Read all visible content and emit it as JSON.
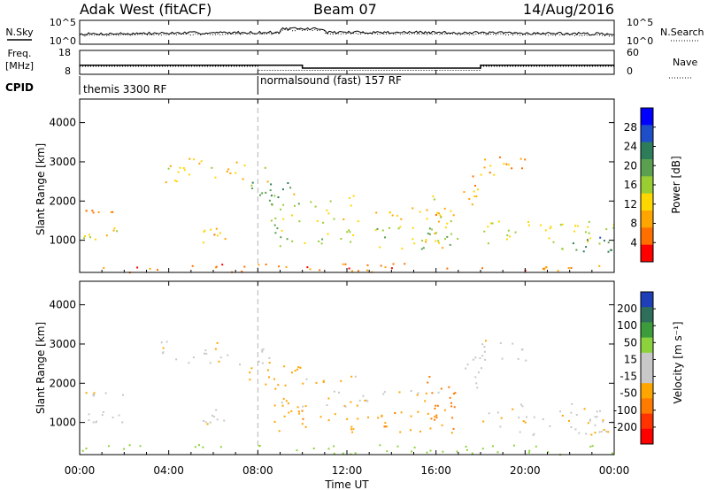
{
  "header": {
    "station": "Adak West (fitACF)",
    "beam": "Beam 07",
    "date": "14/Aug/2016"
  },
  "chart_data": {
    "type": "heatmap",
    "x_ticks": [
      "00:00",
      "04:00",
      "08:00",
      "12:00",
      "16:00",
      "20:00",
      "00:00"
    ],
    "xlabel": "Time UT",
    "xlim_hours": [
      0,
      24
    ],
    "mode_change_hour": 8,
    "noise_panel": {
      "left_label": "N.Sky",
      "right_label": "N.Search",
      "left_ticks": [
        "10^5",
        "10^0"
      ],
      "right_ticks": [
        "10^5",
        "10^0"
      ]
    },
    "freq_panel": {
      "left_label_1": "Freq.",
      "left_label_2": "[MHz]",
      "right_label": "Nave",
      "left_ticks": [
        "18",
        "8"
      ],
      "right_ticks": [
        "60",
        "0"
      ],
      "freq_segments": [
        {
          "start": 0.0,
          "end": 10.0,
          "value": 11.8
        },
        {
          "start": 10.0,
          "end": 18.0,
          "value": 10.6
        },
        {
          "start": 18.0,
          "end": 24.0,
          "value": 11.8
        }
      ],
      "nave_segments": [
        {
          "start": 0.0,
          "end": 8.0,
          "value": 20
        },
        {
          "start": 8.0,
          "end": 18.0,
          "value": 10
        },
        {
          "start": 18.0,
          "end": 24.0,
          "value": 20
        }
      ]
    },
    "cpid": {
      "label": "CPID",
      "programs": [
        "themis 3300 RF",
        "normalsound (fast) 157 RF"
      ]
    },
    "power_panel": {
      "ylabel": "Slant Range [km]",
      "y_ticks": [
        "4000",
        "3000",
        "2000",
        "1000"
      ],
      "ylim_km": [
        180,
        4600
      ],
      "colorbar_label": "Power [dB]",
      "colorbar_ticks": [
        "28",
        "24",
        "20",
        "16",
        "12",
        "8",
        "4"
      ],
      "colors": [
        "#0000ff",
        "#1f4fc8",
        "#2e7d5a",
        "#5aa050",
        "#9acd32",
        "#ffd700",
        "#ffa500",
        "#ff6f00",
        "#ff0000"
      ]
    },
    "velocity_panel": {
      "ylabel": "Slant Range [km]",
      "y_ticks": [
        "4000",
        "3000",
        "2000",
        "1000"
      ],
      "ylim_km": [
        180,
        4600
      ],
      "colorbar_label": "Velocity [m s⁻¹]",
      "colorbar_ticks": [
        "200",
        "100",
        "50",
        "15",
        "-15",
        "-50",
        "-100",
        "-200"
      ],
      "colors": [
        "#1f3fb8",
        "#2e6e5a",
        "#3c9c3c",
        "#8cd23c",
        "#c8c8c8",
        "#c8c8c8",
        "#ffa500",
        "#ff7a00",
        "#ff3300",
        "#ff0000"
      ]
    },
    "echo_regions": [
      {
        "t0": 0.1,
        "t1": 2.1,
        "r0": 1700,
        "r1": 1800,
        "p": 8,
        "v": -10
      },
      {
        "t0": 0.1,
        "t1": 2.0,
        "r0": 1000,
        "r1": 1350,
        "p": 12,
        "v": -5
      },
      {
        "t0": 3.5,
        "t1": 8.5,
        "r0": 2500,
        "r1": 3100,
        "p": 12,
        "v": -10
      },
      {
        "t0": 7.5,
        "t1": 10.0,
        "r0": 1950,
        "r1": 2500,
        "p": 20,
        "v": -25
      },
      {
        "t0": 8.5,
        "t1": 12.5,
        "r0": 1400,
        "r1": 2200,
        "p": 14,
        "v": -20
      },
      {
        "t0": 8.5,
        "t1": 17.0,
        "r0": 750,
        "r1": 1400,
        "p": 16,
        "v": -40
      },
      {
        "t0": 12.5,
        "t1": 17.0,
        "r0": 1550,
        "r1": 1850,
        "p": 10,
        "v": -10
      },
      {
        "t0": 15.5,
        "t1": 17.0,
        "r0": 700,
        "r1": 2200,
        "p": 12,
        "v": -60
      },
      {
        "t0": 17.2,
        "t1": 18.0,
        "r0": 1900,
        "r1": 2700,
        "p": 10,
        "v": -5
      },
      {
        "t0": 18.0,
        "t1": 20.0,
        "r0": 2600,
        "r1": 3150,
        "p": 8,
        "v": -5
      },
      {
        "t0": 18.0,
        "t1": 24.0,
        "r0": 700,
        "r1": 1500,
        "p": 14,
        "v": -10
      },
      {
        "t0": 22.0,
        "t1": 24.0,
        "r0": 700,
        "r1": 1100,
        "p": 22,
        "v": -20
      },
      {
        "t0": 5.5,
        "t1": 6.5,
        "r0": 900,
        "r1": 1400,
        "p": 10,
        "v": -10
      },
      {
        "t0": 0.0,
        "t1": 24.0,
        "r0": 200,
        "r1": 450,
        "p": 6,
        "v": 30
      }
    ]
  }
}
